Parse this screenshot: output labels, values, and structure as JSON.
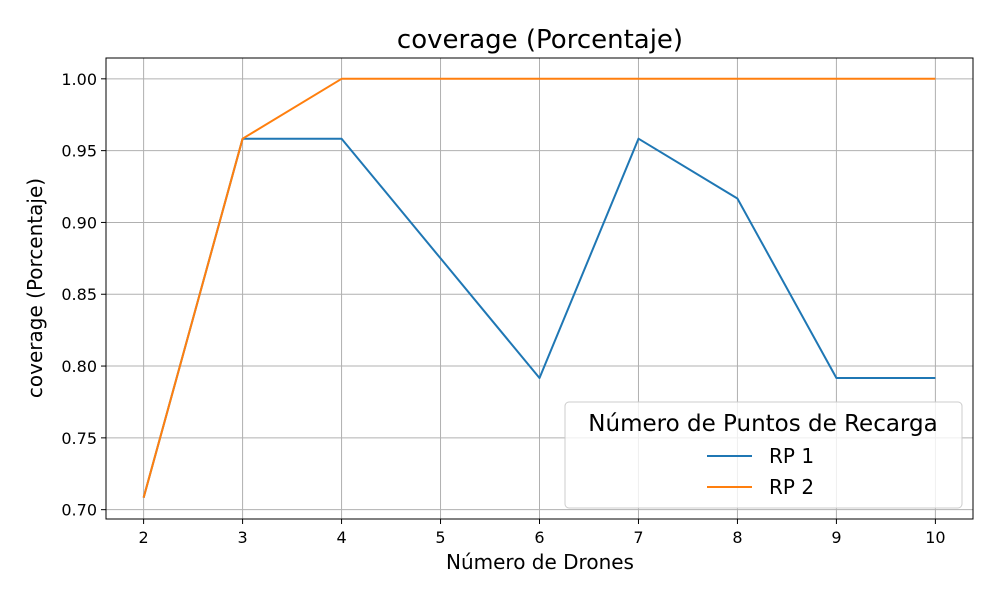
{
  "chart_data": {
    "type": "line",
    "title": "coverage (Porcentaje)",
    "xlabel": "Número de Drones",
    "ylabel": "coverage (Porcentaje)",
    "x": [
      2,
      3,
      4,
      5,
      6,
      7,
      8,
      9,
      10
    ],
    "x_ticks": [
      "2",
      "3",
      "4",
      "5",
      "6",
      "7",
      "8",
      "9",
      "10"
    ],
    "y_ticks": [
      "0.70",
      "0.75",
      "0.80",
      "0.85",
      "0.90",
      "0.95",
      "1.00"
    ],
    "xlim": [
      1.62,
      10.38
    ],
    "ylim": [
      0.6935,
      1.0145
    ],
    "grid": true,
    "legend": {
      "title": "Número de Puntos de Recarga",
      "placement": "lower-right"
    },
    "series": [
      {
        "name": "RP 1",
        "color": "#1f77b4",
        "values": [
          0.7083,
          0.9583,
          0.9583,
          0.875,
          0.7917,
          0.9583,
          0.9167,
          0.7917,
          0.7917
        ]
      },
      {
        "name": "RP 2",
        "color": "#ff7f0e",
        "values": [
          0.7083,
          0.9583,
          1.0,
          1.0,
          1.0,
          1.0,
          1.0,
          1.0,
          1.0
        ]
      }
    ]
  }
}
